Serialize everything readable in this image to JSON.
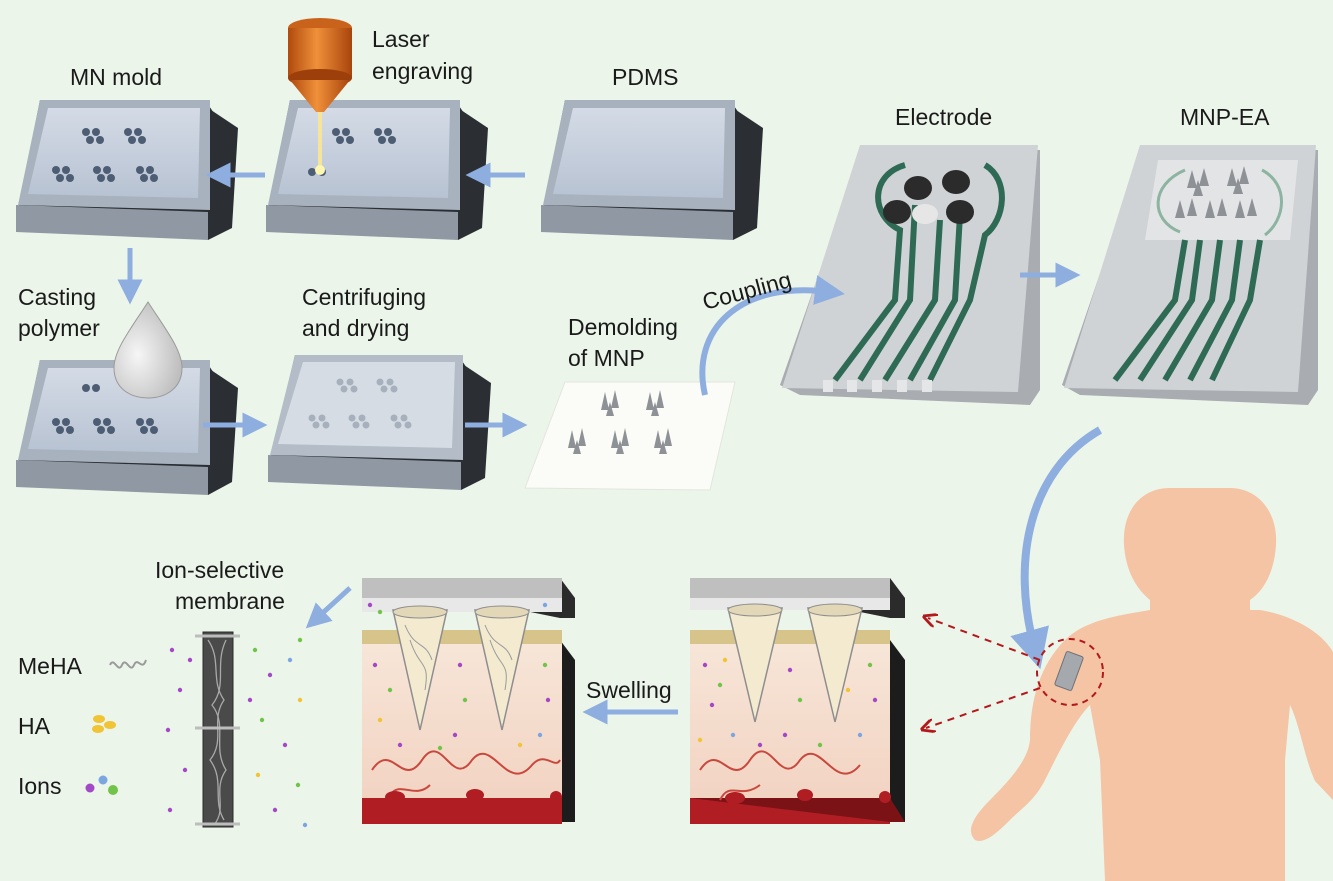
{
  "labels": {
    "mn_mold": "MN mold",
    "laser_1": "Laser",
    "laser_2": "engraving",
    "pdms": "PDMS",
    "electrode": "Electrode",
    "mnp_ea": "MNP-EA",
    "casting_1": "Casting",
    "casting_2": "polymer",
    "centrifuging_1": "Centrifuging",
    "centrifuging_2": "and drying",
    "coupling": "Coupling",
    "demolding_1": "Demolding",
    "demolding_2": "of MNP",
    "ism_1": "Ion-selective",
    "ism_2": "membrane",
    "swelling": "Swelling"
  },
  "legend": [
    {
      "label": "MeHA",
      "symbol": "squiggle-line"
    },
    {
      "label": "HA",
      "symbol": "yellow-dots"
    },
    {
      "label": "Ions",
      "symbol": "colored-dots"
    }
  ],
  "colors": {
    "background": "#ecf5ea",
    "arrow": "#8eaee0",
    "trace": "#2f6a55",
    "skin": "#f4c4a4",
    "tissue_red": "#b01e24",
    "dashed_arrow": "#b3191c"
  }
}
